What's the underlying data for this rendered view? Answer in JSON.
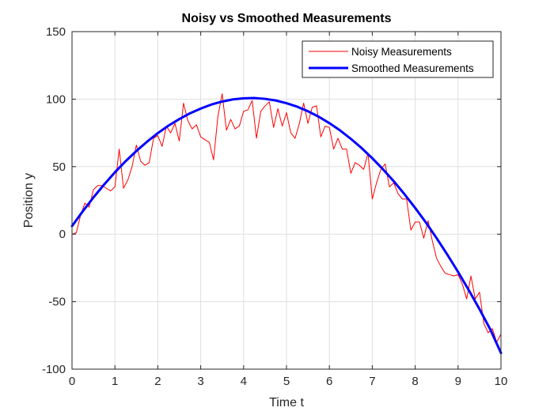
{
  "chart_data": {
    "type": "line",
    "title": "Noisy vs Smoothed Measurements",
    "xlabel": "Time t",
    "ylabel": "Position y",
    "xlim": [
      0,
      10
    ],
    "ylim": [
      -100,
      150
    ],
    "xticks": [
      0,
      1,
      2,
      3,
      4,
      5,
      6,
      7,
      8,
      9,
      10
    ],
    "yticks": [
      -100,
      -50,
      0,
      50,
      100,
      150
    ],
    "xtick_labels": [
      "0",
      "1",
      "2",
      "3",
      "4",
      "5",
      "6",
      "7",
      "8",
      "9",
      "10"
    ],
    "ytick_labels": [
      "-100",
      "-50",
      "0",
      "50",
      "100",
      "150"
    ],
    "grid": true,
    "legend_position": "top-right",
    "series": [
      {
        "name": "Noisy Measurements",
        "color": "#ff0000",
        "x": [
          0,
          0.1,
          0.2,
          0.3,
          0.4,
          0.5,
          0.6,
          0.7,
          0.8,
          0.9,
          1,
          1.1,
          1.2,
          1.3,
          1.4,
          1.5,
          1.6,
          1.7,
          1.8,
          1.9,
          2,
          2.1,
          2.2,
          2.3,
          2.4,
          2.5,
          2.6,
          2.7,
          2.8,
          2.9,
          3,
          3.1,
          3.2,
          3.3,
          3.4,
          3.5,
          3.6,
          3.7,
          3.8,
          3.9,
          4,
          4.1,
          4.2,
          4.3,
          4.4,
          4.5,
          4.6,
          4.7,
          4.8,
          4.9,
          5,
          5.1,
          5.2,
          5.3,
          5.4,
          5.5,
          5.6,
          5.7,
          5.8,
          5.9,
          6,
          6.1,
          6.2,
          6.3,
          6.4,
          6.5,
          6.6,
          6.7,
          6.8,
          6.9,
          7,
          7.1,
          7.2,
          7.3,
          7.4,
          7.5,
          7.6,
          7.7,
          7.8,
          7.9,
          8,
          8.1,
          8.2,
          8.3,
          8.4,
          8.5,
          8.6,
          8.7,
          8.8,
          8.9,
          9,
          9.1,
          9.2,
          9.3,
          9.4,
          9.5,
          9.6,
          9.7,
          9.8,
          9.9,
          10
        ],
        "values": [
          0,
          1,
          14,
          23,
          20,
          33,
          36,
          36,
          34,
          32,
          35,
          63,
          34,
          40,
          50,
          66,
          54,
          51,
          53,
          71,
          73,
          65,
          80,
          75,
          82,
          69,
          97,
          84,
          78,
          81,
          72,
          70,
          68,
          55,
          87,
          104,
          77,
          85,
          78,
          80,
          91,
          92,
          99,
          71,
          91,
          95,
          98,
          79,
          93,
          80,
          90,
          75,
          71,
          82,
          97,
          82,
          94,
          95,
          72,
          80,
          79,
          63,
          71,
          63,
          63,
          45,
          53,
          51,
          48,
          60,
          26,
          38,
          48,
          52,
          35,
          38,
          30,
          26,
          26,
          3,
          9,
          9,
          -3,
          10,
          -5,
          -18,
          -24,
          -29,
          -30,
          -31,
          -30,
          -37,
          -48,
          -31,
          -48,
          -43,
          -66,
          -73,
          -70,
          -80,
          -74
        ]
      },
      {
        "name": "Smoothed Measurements",
        "color": "#0000ff",
        "x": [
          0,
          0.25,
          0.5,
          0.75,
          1,
          1.25,
          1.5,
          1.75,
          2,
          2.25,
          2.5,
          2.75,
          3,
          3.25,
          3.5,
          3.75,
          4,
          4.25,
          4.5,
          4.75,
          5,
          5.25,
          5.5,
          5.75,
          6,
          6.25,
          6.5,
          6.75,
          7,
          7.25,
          7.5,
          7.75,
          8,
          8.25,
          8.5,
          8.75,
          9,
          9.25,
          9.5,
          9.75,
          10
        ],
        "values": [
          6,
          16.9,
          27.2,
          36.8,
          45.8,
          54,
          61.6,
          68.5,
          74.8,
          80.4,
          85.2,
          89.5,
          93,
          96,
          98.2,
          99.8,
          100.6,
          100.8,
          100.2,
          99,
          97,
          94.4,
          91,
          87,
          82.2,
          76.8,
          70.6,
          63.8,
          56.2,
          48,
          39.2,
          29.6,
          19.4,
          8.6,
          -3,
          -15.2,
          -28,
          -41.5,
          -55.6,
          -70.5,
          -88
        ]
      }
    ]
  }
}
